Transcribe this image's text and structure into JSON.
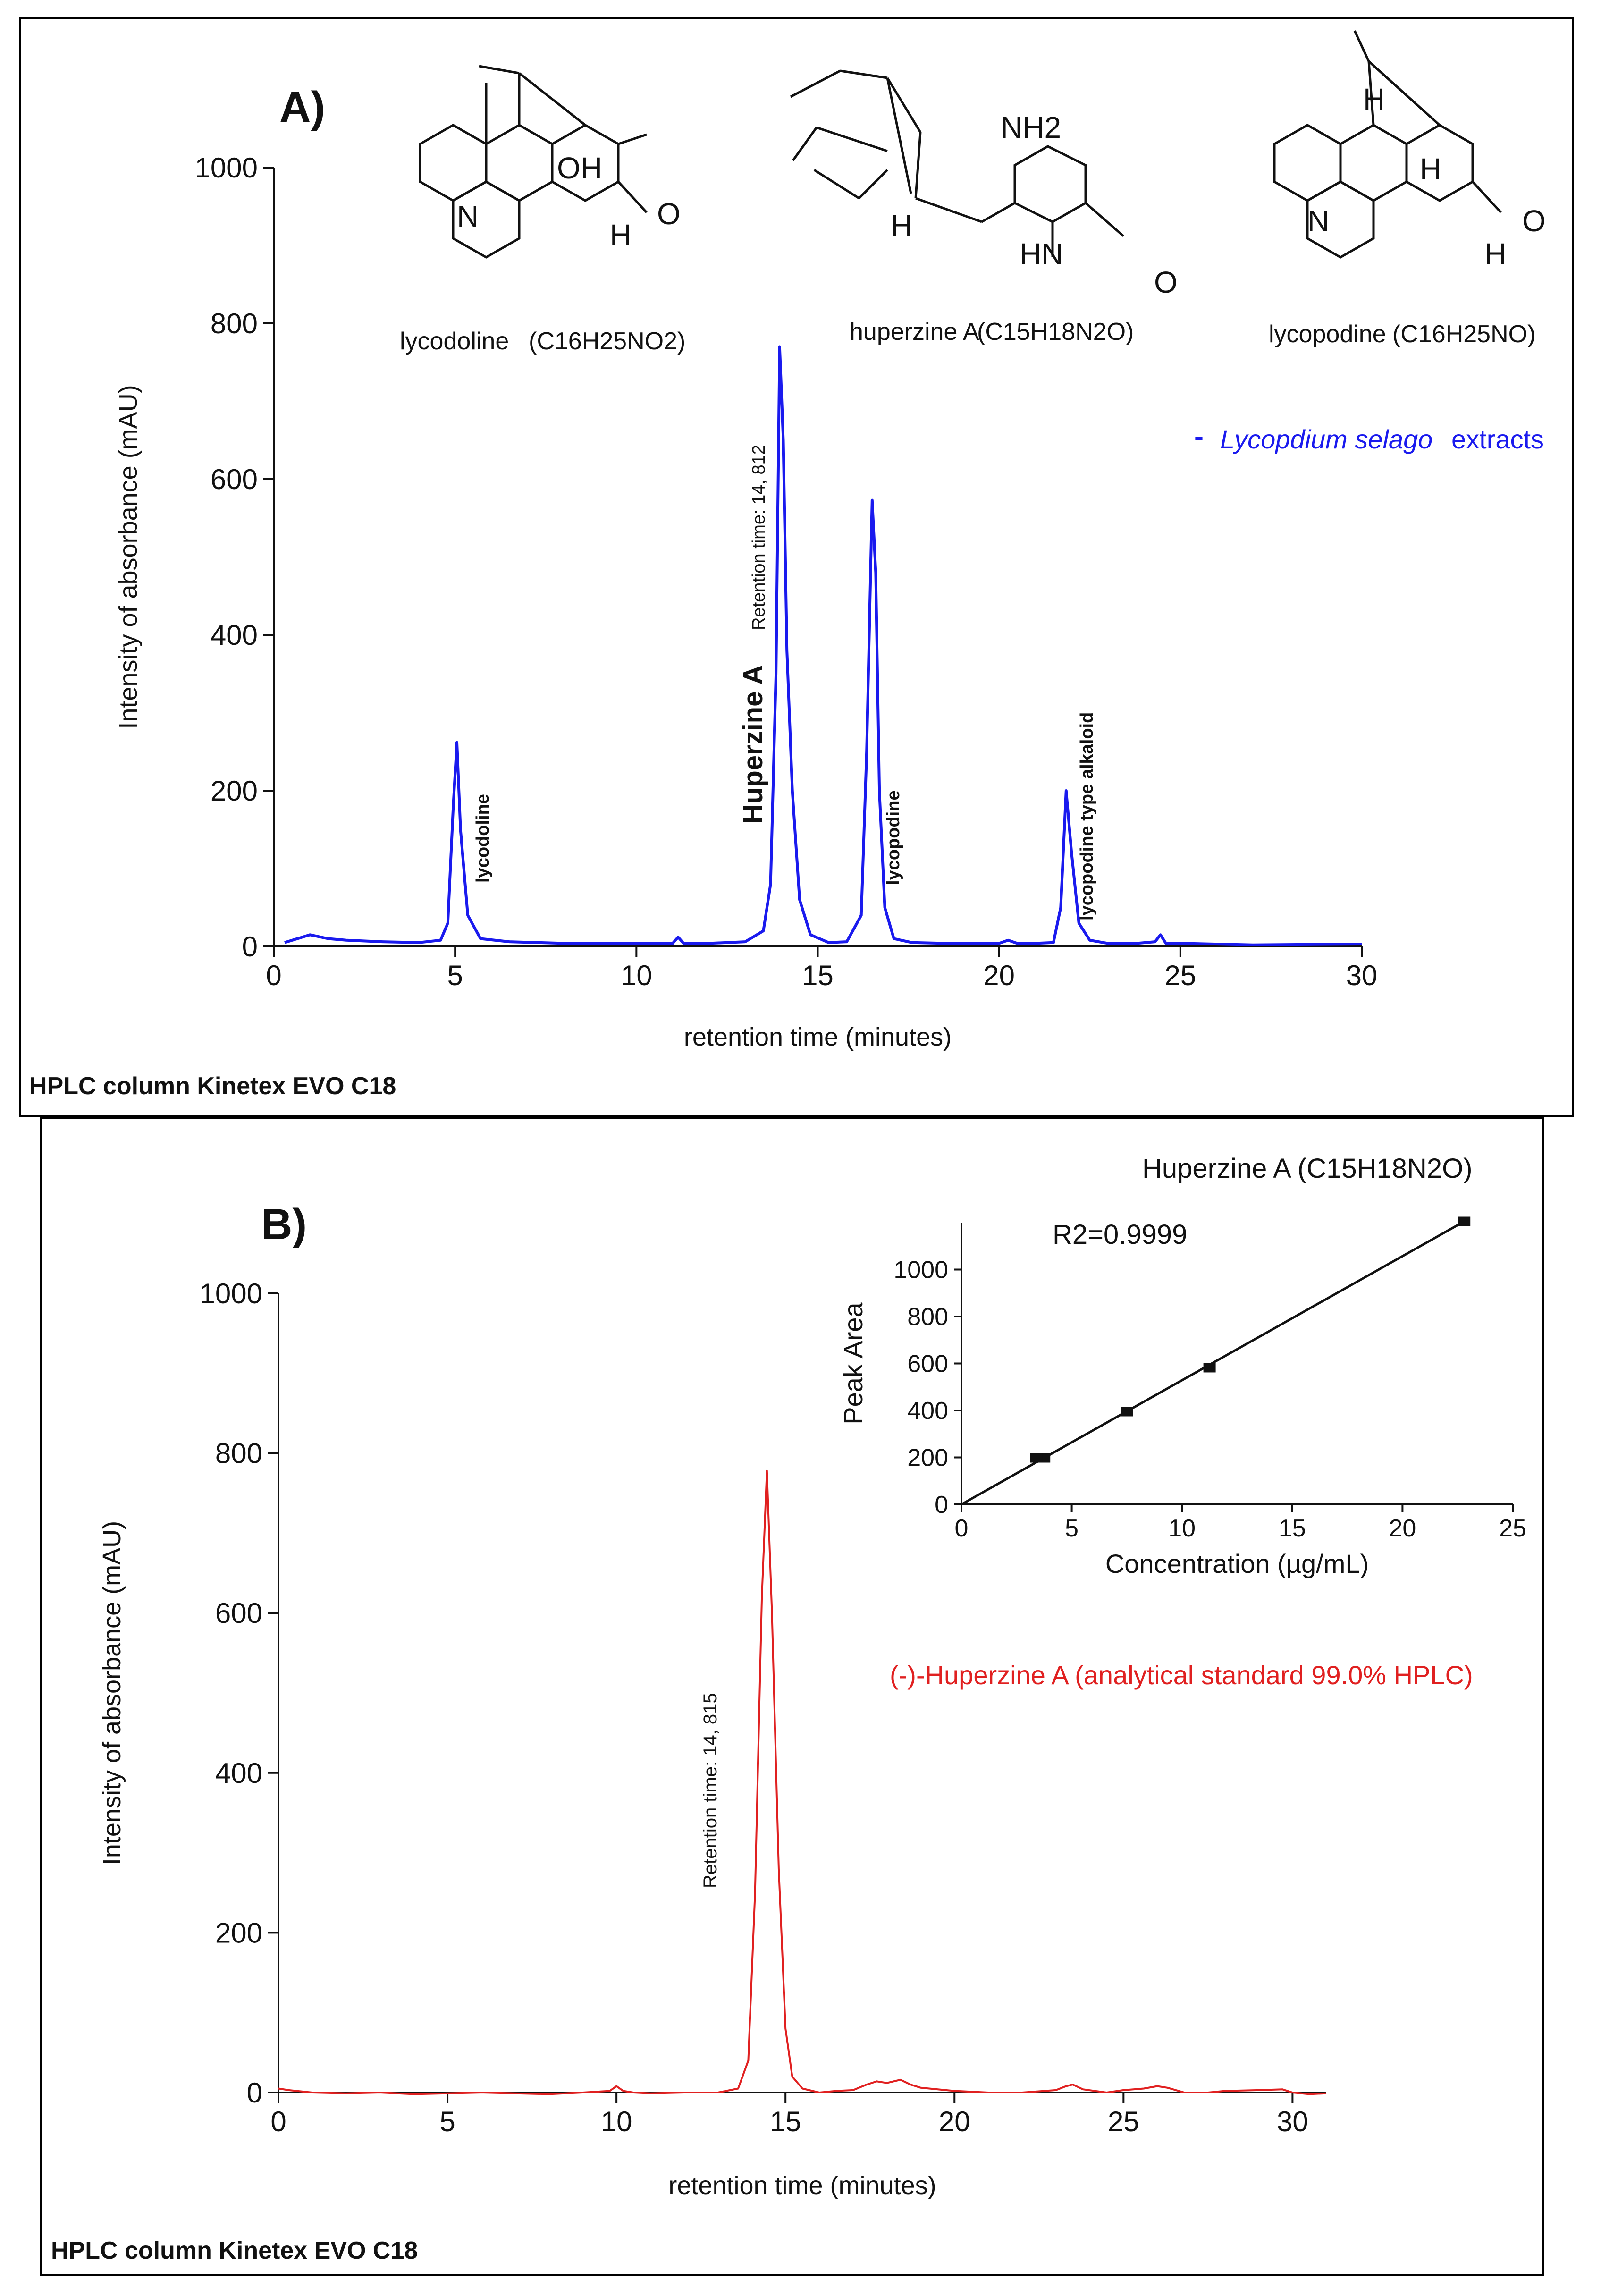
{
  "panel_a": {
    "label": "A)",
    "footer": "HPLC column Kinetex EVO C18",
    "structures": [
      {
        "name": "lycodoline",
        "formula": "(C16H25NO2)",
        "atoms": [
          "OH",
          "N",
          "H",
          "O"
        ]
      },
      {
        "name": "huperzine A",
        "formula": "(C15H18N2O)",
        "atoms": [
          "NH2",
          "H",
          "HN",
          "O"
        ]
      },
      {
        "name": "lycopodine",
        "formula": "(C16H25NO)",
        "atoms": [
          "H",
          "H",
          "N",
          "H",
          "O"
        ]
      }
    ],
    "legend": {
      "swatch": "-",
      "species": "Lycopdium selago",
      "suffix": "extracts"
    },
    "peak_labels": [
      {
        "text": "lycodoline",
        "x": 5.0
      },
      {
        "text": "Huperzine A",
        "x": 13.0
      },
      {
        "text": "Retention time: 14, 812",
        "x": 13.8
      },
      {
        "text": "lycopodine",
        "x": 16.6
      },
      {
        "text": "lycopodine type alkaloid",
        "x": 22.0
      }
    ]
  },
  "panel_b": {
    "label": "B)",
    "footer": "HPLC column Kinetex EVO C18",
    "legend": "(-)-Huperzine A (analytical standard 99.0% HPLC)",
    "retention_label": "Retention time: 14, 815",
    "inset_title": "Huperzine A (C15H18N2O)",
    "r2_label": "R2=0.9999"
  },
  "chart_data": [
    {
      "type": "line",
      "title": "A)",
      "xlabel": "retention time (minutes)",
      "ylabel": "Intensity of absorbance (mAU)",
      "xlim": [
        0,
        30
      ],
      "ylim": [
        0,
        1000
      ],
      "xticks": [
        "0",
        "5",
        "10",
        "15",
        "20",
        "25",
        "30"
      ],
      "yticks": [
        "0",
        "200",
        "400",
        "600",
        "800",
        "1000"
      ],
      "series": [
        {
          "name": "Lycopdium selago extracts",
          "color": "#1a1aee",
          "x": [
            0.3,
            1.0,
            1.5,
            2.0,
            3.0,
            4.0,
            4.6,
            4.8,
            4.95,
            5.05,
            5.15,
            5.35,
            5.7,
            6.5,
            8.0,
            10.0,
            11.0,
            11.15,
            11.3,
            12.0,
            13.0,
            13.5,
            13.7,
            13.85,
            13.95,
            14.05,
            14.15,
            14.3,
            14.5,
            14.8,
            15.3,
            15.8,
            16.2,
            16.35,
            16.5,
            16.6,
            16.7,
            16.85,
            17.1,
            17.6,
            18.5,
            19.5,
            20.0,
            20.25,
            20.5,
            21.0,
            21.5,
            21.7,
            21.85,
            22.0,
            22.2,
            22.5,
            23.0,
            23.8,
            24.3,
            24.45,
            24.6,
            25.0,
            27.0,
            30.0
          ],
          "y": [
            5,
            15,
            10,
            8,
            6,
            5,
            8,
            30,
            180,
            262,
            150,
            40,
            10,
            6,
            4,
            4,
            4,
            12,
            4,
            4,
            6,
            20,
            80,
            350,
            770,
            650,
            380,
            200,
            60,
            15,
            5,
            6,
            40,
            250,
            573,
            480,
            200,
            50,
            10,
            5,
            4,
            4,
            4,
            8,
            4,
            4,
            5,
            50,
            200,
            120,
            30,
            8,
            4,
            4,
            6,
            15,
            4,
            4,
            2,
            3
          ]
        }
      ]
    },
    {
      "type": "line",
      "title": "B)",
      "xlabel": "retention time (minutes)",
      "ylabel": "Intensity of absorbance (mAU)",
      "xlim": [
        0,
        31
      ],
      "ylim": [
        0,
        1000
      ],
      "xticks": [
        "0",
        "5",
        "10",
        "15",
        "20",
        "25",
        "30"
      ],
      "yticks": [
        "0",
        "200",
        "400",
        "600",
        "800",
        "1000"
      ],
      "series": [
        {
          "name": "(-)-Huperzine A (analytical standard 99.0% HPLC)",
          "color": "#e02020",
          "x": [
            0.0,
            0.3,
            1.0,
            2.0,
            3.0,
            4.0,
            5.0,
            6.0,
            7.0,
            8.0,
            9.0,
            9.8,
            10.0,
            10.2,
            10.5,
            11.0,
            12.0,
            13.0,
            13.6,
            13.9,
            14.1,
            14.3,
            14.45,
            14.6,
            14.8,
            15.0,
            15.2,
            15.5,
            16.0,
            16.5,
            17.0,
            17.4,
            17.7,
            18.0,
            18.4,
            18.7,
            19.0,
            20.0,
            21.0,
            22.0,
            23.0,
            23.3,
            23.5,
            23.8,
            24.5,
            25.0,
            25.6,
            26.0,
            26.3,
            26.8,
            27.5,
            28.0,
            29.0,
            29.7,
            30.0,
            30.5,
            31.0
          ],
          "y": [
            5,
            3,
            0,
            -1,
            0,
            -2,
            -1,
            0,
            -1,
            -2,
            0,
            2,
            8,
            2,
            0,
            -1,
            0,
            0,
            5,
            40,
            250,
            620,
            778,
            600,
            280,
            80,
            20,
            5,
            0,
            2,
            3,
            10,
            14,
            12,
            16,
            10,
            6,
            2,
            0,
            0,
            3,
            8,
            10,
            4,
            0,
            3,
            5,
            8,
            6,
            0,
            0,
            2,
            3,
            4,
            0,
            -2,
            -1
          ]
        }
      ]
    },
    {
      "type": "scatter",
      "title": "Huperzine A (C15H18N2O)",
      "xlabel": "Concentration (µg/mL)",
      "ylabel": "Peak Area",
      "xlim": [
        0,
        25
      ],
      "ylim": [
        0,
        1200
      ],
      "xticks": [
        "0",
        "5",
        "10",
        "15",
        "20",
        "25"
      ],
      "yticks": [
        "0",
        "200",
        "400",
        "600",
        "800",
        "1000"
      ],
      "annotation": "R2=0.9999",
      "fit": {
        "x": [
          0,
          22.8
        ],
        "y": [
          0,
          1205
        ]
      },
      "series": [
        {
          "name": "Huperzine A (C15H18N2O)",
          "color": "#111111",
          "x": [
            3.75,
            7.5,
            11.25,
            22.8
          ],
          "y": [
            198,
            395,
            582,
            1205
          ]
        }
      ]
    }
  ]
}
